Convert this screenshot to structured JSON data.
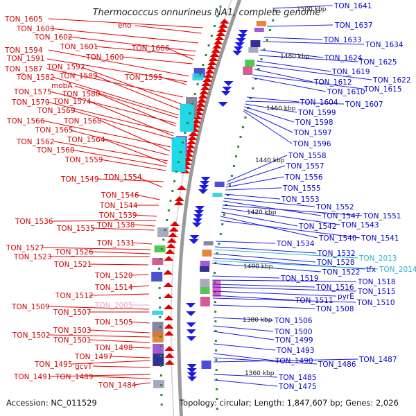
{
  "title": "Thermococcus onnurineus NA1, complete genome",
  "footer": {
    "accession": "Accession: NC_011529",
    "topology": "Topology: circular; Length: 1,847,607 bp; Genes: 2,026"
  },
  "scale_labels": [
    "1500 kbp",
    "1480 kbp",
    "1460 kbp",
    "1440 kbp",
    "1420 kbp",
    "1400 kbp",
    "1380 kbp",
    "1360 kbp"
  ],
  "left_labels": [
    "TON_1605",
    "TON_1603",
    "eno",
    "TON_1602",
    "TON_1601",
    "TON_1606",
    "TON_1594",
    "TON_1600",
    "TON_1591",
    "TON_1587",
    "TON_1592",
    "TON_1589",
    "TON_1582",
    "TON_1595",
    "mobA",
    "TON_1575",
    "TON_1580",
    "TON_1570",
    "TON_1574",
    "TON_1569",
    "TON_1566",
    "TON_1568",
    "TON_1565",
    "TON_1562",
    "TON_1564",
    "TON_1560",
    "TON_1559",
    "TON_1549",
    "TON_1554",
    "TON_1546",
    "TON_1544",
    "TON_1539",
    "TON_1536",
    "TON_1538",
    "TON_1535",
    "TON_1531",
    "TON_1527",
    "TON_1526",
    "TON_1523",
    "TON_1521",
    "TON_1520",
    "TON_1514",
    "TON_1512",
    "TON_2005",
    "TON_1509",
    "TON_1507",
    "TON_1505",
    "TON_1503",
    "TON_1502",
    "TON_1501",
    "TON_1498",
    "TON_1497",
    "TON_1495",
    "gcvT",
    "TON_1491",
    "TON_1489",
    "TON_1484"
  ],
  "right_labels": [
    "TON_1641",
    "TON_1637",
    "TON_1633",
    "TON_1634",
    "TON_1624",
    "TON_1625",
    "TON_1619",
    "TON_1622",
    "TON_1612",
    "TON_1615",
    "TON_1610",
    "TON_1604",
    "TON_1607",
    "TON_1599",
    "TON_1598",
    "TON_1597",
    "TON_1596",
    "TON_1558",
    "TON_1557",
    "TON_1556",
    "TON_1555",
    "TON_1553",
    "TON_1552",
    "TON_1547",
    "TON_1551",
    "TON_1543",
    "TON_1542",
    "TON_1540",
    "TON_1541",
    "TON_1534",
    "TON_1532",
    "TON_2013",
    "TON_1528",
    "tfx",
    "TON_2014",
    "TON_1522",
    "TON_1519",
    "TON_1518",
    "TON_1516",
    "TON_1515",
    "pyrE",
    "TON_1511",
    "TON_1510",
    "TON_1508",
    "TON_1506",
    "TON_1500",
    "TON_1499",
    "TON_1493",
    "TON_1490",
    "TON_1486",
    "TON_1487",
    "TON_1485",
    "TON_1475"
  ],
  "colors": {
    "left_label": "#d00000",
    "right_label": "#0000c8",
    "rna_label_right": "#27b7cf",
    "rna_label_left": "#e8a6c8",
    "backbone": "#8a8a8a"
  }
}
